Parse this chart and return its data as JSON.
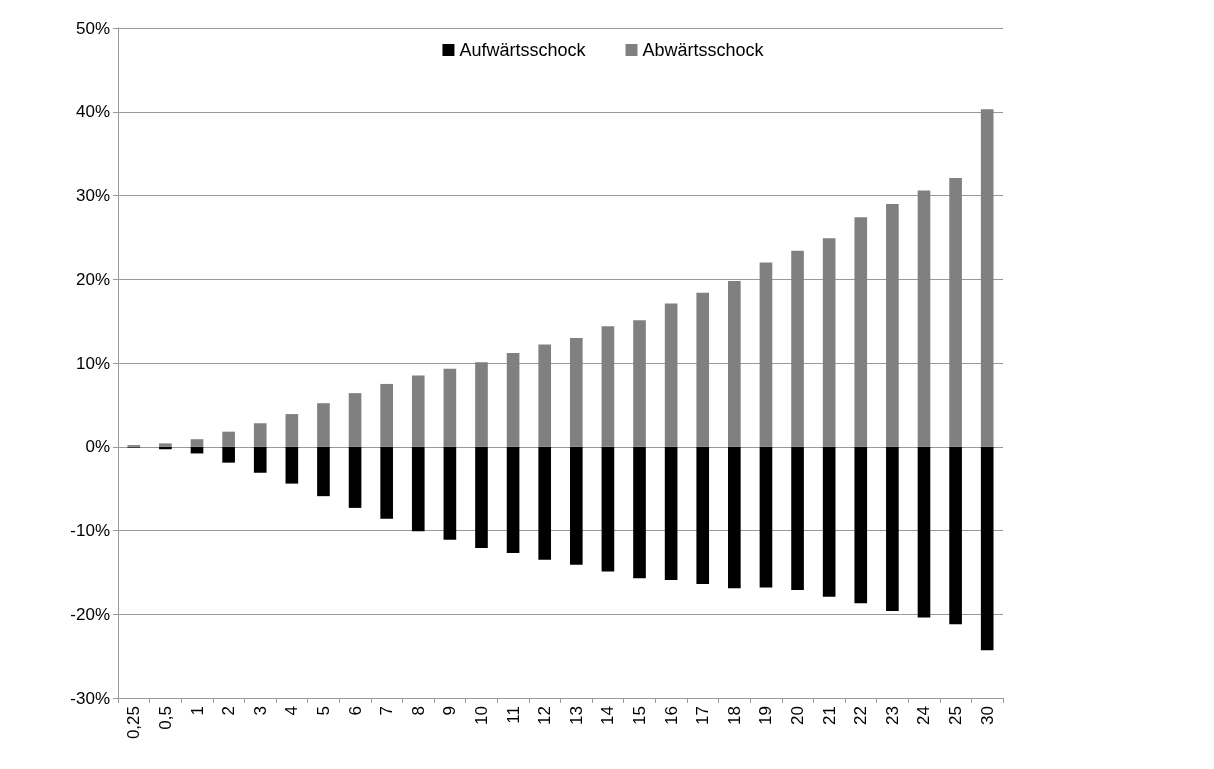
{
  "chart_data": {
    "type": "bar",
    "categories": [
      "0,25",
      "0,5",
      "1",
      "2",
      "3",
      "4",
      "5",
      "6",
      "7",
      "8",
      "9",
      "10",
      "11",
      "12",
      "13",
      "14",
      "15",
      "16",
      "17",
      "18",
      "19",
      "20",
      "21",
      "22",
      "23",
      "24",
      "25",
      "30"
    ],
    "series": [
      {
        "name": "Aufwärtsschock",
        "color": "#000000",
        "values": [
          -0.1,
          -0.3,
          -0.8,
          -1.9,
          -3.1,
          -4.4,
          -5.9,
          -7.3,
          -8.6,
          -10.1,
          -11.1,
          -12.1,
          -12.7,
          -13.5,
          -14.1,
          -14.9,
          -15.7,
          -15.9,
          -16.4,
          -16.9,
          -16.8,
          -17.1,
          -17.9,
          -18.7,
          -19.6,
          -20.4,
          -21.2,
          -24.3
        ]
      },
      {
        "name": "Abwärtsschock",
        "color": "#808080",
        "values": [
          0.2,
          0.4,
          0.9,
          1.8,
          2.8,
          3.9,
          5.2,
          6.4,
          7.5,
          8.5,
          9.3,
          10.1,
          11.2,
          12.2,
          13.0,
          14.4,
          15.1,
          17.1,
          18.4,
          19.8,
          22.0,
          23.4,
          24.9,
          27.4,
          29.0,
          30.6,
          32.1,
          40.3
        ]
      }
    ],
    "ylim": [
      -30,
      50
    ],
    "yticks": [
      {
        "value": -30,
        "label": "-30%"
      },
      {
        "value": -20,
        "label": "-20%"
      },
      {
        "value": -10,
        "label": "-10%"
      },
      {
        "value": 0,
        "label": "0%"
      },
      {
        "value": 10,
        "label": "10%"
      },
      {
        "value": 20,
        "label": "20%"
      },
      {
        "value": 30,
        "label": "30%"
      },
      {
        "value": 40,
        "label": "40%"
      },
      {
        "value": 50,
        "label": "50%"
      }
    ],
    "grid": "y",
    "legend": "top",
    "stacked": true
  }
}
